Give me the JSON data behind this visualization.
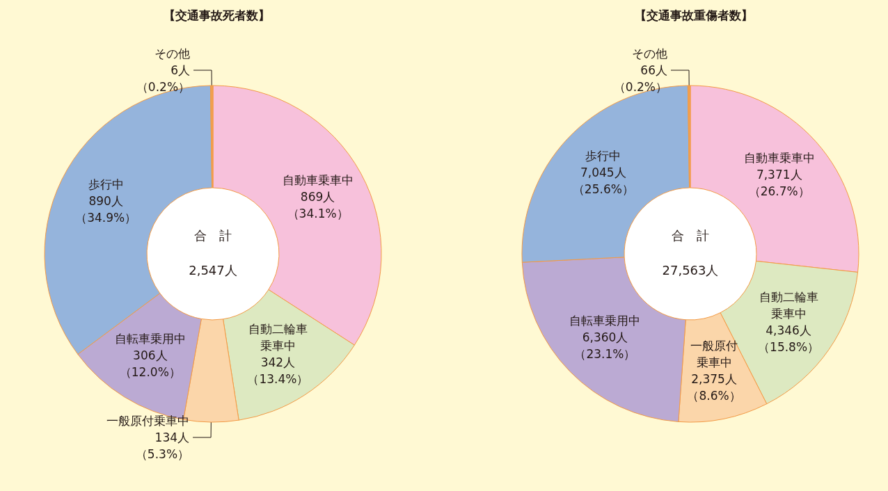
{
  "chart_data": [
    {
      "type": "donut",
      "title": "【交通事故死者数】",
      "categories": [
        "自動車乗車中",
        "自動二輪車乗車中",
        "一般原付乗車中",
        "自転車乗用中",
        "歩行中",
        "その他"
      ],
      "values": [
        869,
        342,
        134,
        306,
        890,
        6
      ],
      "value_labels": [
        "869人（34.1%）",
        "342人（13.4%）",
        "134人（5.3%）",
        "306人（12.0%）",
        "890人（34.9%）",
        "6人（0.2%）"
      ],
      "colors": [
        "#f7c1db",
        "#dde9c1",
        "#fbd6aa",
        "#bbaad3",
        "#95b4dc",
        "#f0a050"
      ],
      "annotations": [
        "合　計",
        "2,547人"
      ]
    },
    {
      "type": "donut",
      "title": "【交通事故重傷者数】",
      "categories": [
        "自動車乗車中",
        "自動二輪車乗車中",
        "一般原付乗車中",
        "自転車乗用中",
        "歩行中",
        "その他"
      ],
      "values": [
        7371,
        4346,
        2375,
        6360,
        7045,
        66
      ],
      "value_labels": [
        "7,371人（26.7%）",
        "4,346人（15.8%）",
        "2,375人（8.6%）",
        "6,360人（23.1%）",
        "7,045人（25.6%）",
        "66人（0.2%）"
      ],
      "colors": [
        "#f7c1db",
        "#dde9c1",
        "#fbd6aa",
        "#bbaad3",
        "#95b4dc",
        "#f0a050"
      ],
      "annotations": [
        "合　計",
        "27,563人"
      ]
    }
  ]
}
